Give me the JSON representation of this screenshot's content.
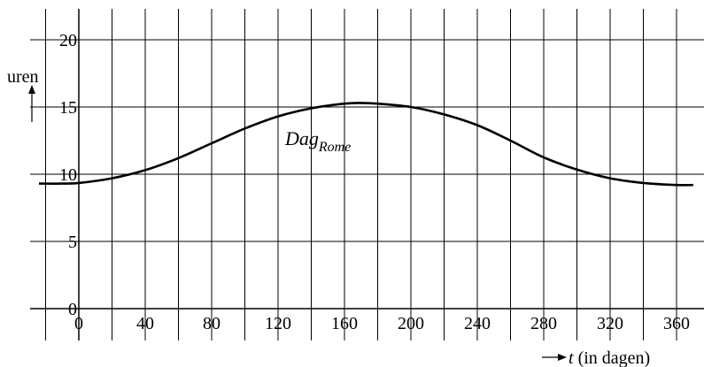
{
  "chart_data": {
    "type": "line",
    "xlabel_var": "t",
    "xlabel_rest": " (in dagen)",
    "ylabel": "uren",
    "xlim": [
      -24,
      370
    ],
    "ylim": [
      -1.5,
      22.5
    ],
    "grid": true,
    "x_ticks": [
      0,
      40,
      80,
      120,
      160,
      200,
      240,
      280,
      320,
      360
    ],
    "y_ticks": [
      0,
      5,
      10,
      15,
      20
    ],
    "x_tick_labels": [
      "0",
      "40",
      "80",
      "120",
      "160",
      "200",
      "240",
      "280",
      "320",
      "360"
    ],
    "y_tick_labels": [
      "0",
      "5",
      "10",
      "15",
      "20"
    ],
    "series": [
      {
        "name": "Dag",
        "name_subscript": "Rome",
        "x": [
          -24,
          -10,
          0,
          20,
          40,
          60,
          80,
          100,
          120,
          140,
          160,
          170,
          180,
          200,
          220,
          240,
          260,
          280,
          300,
          320,
          340,
          360,
          370
        ],
        "y": [
          9.3,
          9.3,
          9.35,
          9.7,
          10.3,
          11.2,
          12.3,
          13.4,
          14.3,
          14.9,
          15.25,
          15.3,
          15.25,
          15.0,
          14.45,
          13.65,
          12.5,
          11.25,
          10.35,
          9.7,
          9.35,
          9.2,
          9.2
        ]
      }
    ],
    "annotation": {
      "x": 175,
      "y": 13.0
    }
  }
}
